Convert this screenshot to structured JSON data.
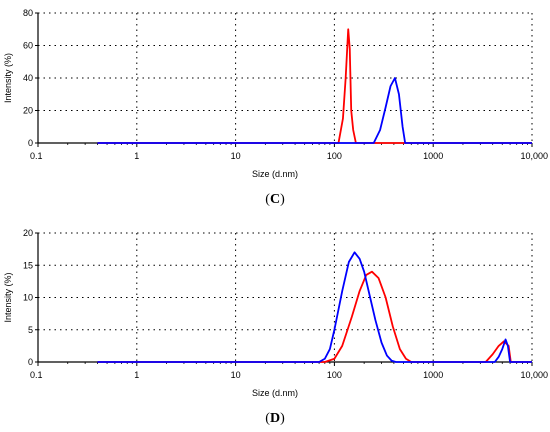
{
  "chart_data": [
    {
      "type": "line",
      "panel_label": "(C)",
      "panel_letter": "C",
      "xlabel": "Size (d.nm)",
      "ylabel": "Intensity (%)",
      "x_scale": "log",
      "xlim": [
        0.1,
        10000
      ],
      "ylim": [
        0,
        80
      ],
      "x_ticks": [
        "0.1",
        "1",
        "10",
        "100",
        "1000",
        "10,000"
      ],
      "y_ticks": [
        "0",
        "20",
        "40",
        "60",
        "80"
      ],
      "grid": true,
      "series": [
        {
          "color": "#ff0000",
          "x": [
            0.4,
            100,
            110,
            122,
            130,
            138,
            143,
            148,
            155,
            165,
            180,
            10000
          ],
          "y": [
            0,
            0,
            0,
            15,
            40,
            70,
            58,
            20,
            8,
            0,
            0,
            0
          ]
        },
        {
          "color": "#0000ff",
          "x": [
            0.4,
            250,
            290,
            330,
            370,
            410,
            450,
            490,
            520,
            10000
          ],
          "y": [
            0,
            0,
            8,
            22,
            35,
            40,
            30,
            10,
            0,
            0
          ]
        }
      ]
    },
    {
      "type": "line",
      "panel_label": "(D)",
      "panel_letter": "D",
      "xlabel": "Size (d.nm)",
      "ylabel": "Intensity (%)",
      "x_scale": "log",
      "xlim": [
        0.1,
        10000
      ],
      "ylim": [
        0,
        20
      ],
      "x_ticks": [
        "0.1",
        "1",
        "10",
        "100",
        "1000",
        "10,000"
      ],
      "y_ticks": [
        "0",
        "5",
        "10",
        "15",
        "20"
      ],
      "grid": true,
      "series": [
        {
          "color": "#ff0000",
          "x": [
            0.4,
            80,
            100,
            120,
            150,
            180,
            210,
            240,
            280,
            330,
            390,
            460,
            530,
            600,
            3400,
            4000,
            4600,
            5200,
            5800,
            6100,
            10000
          ],
          "y": [
            0,
            0,
            0.5,
            2.5,
            7,
            11,
            13.5,
            14,
            13,
            10,
            5.5,
            2,
            0.5,
            0,
            0,
            1.2,
            2.5,
            3.2,
            2.5,
            0,
            0
          ]
        },
        {
          "color": "#0000ff",
          "x": [
            0.4,
            70,
            80,
            90,
            100,
            120,
            140,
            160,
            180,
            200,
            230,
            260,
            300,
            340,
            380,
            420,
            4200,
            4600,
            5000,
            5400,
            5700,
            6000,
            10000
          ],
          "y": [
            0,
            0,
            0.5,
            2,
            5,
            11,
            15.5,
            17,
            16,
            14,
            10,
            6.5,
            3,
            1,
            0.2,
            0,
            0,
            0.8,
            2,
            3.5,
            2.5,
            0,
            0
          ]
        }
      ]
    }
  ]
}
